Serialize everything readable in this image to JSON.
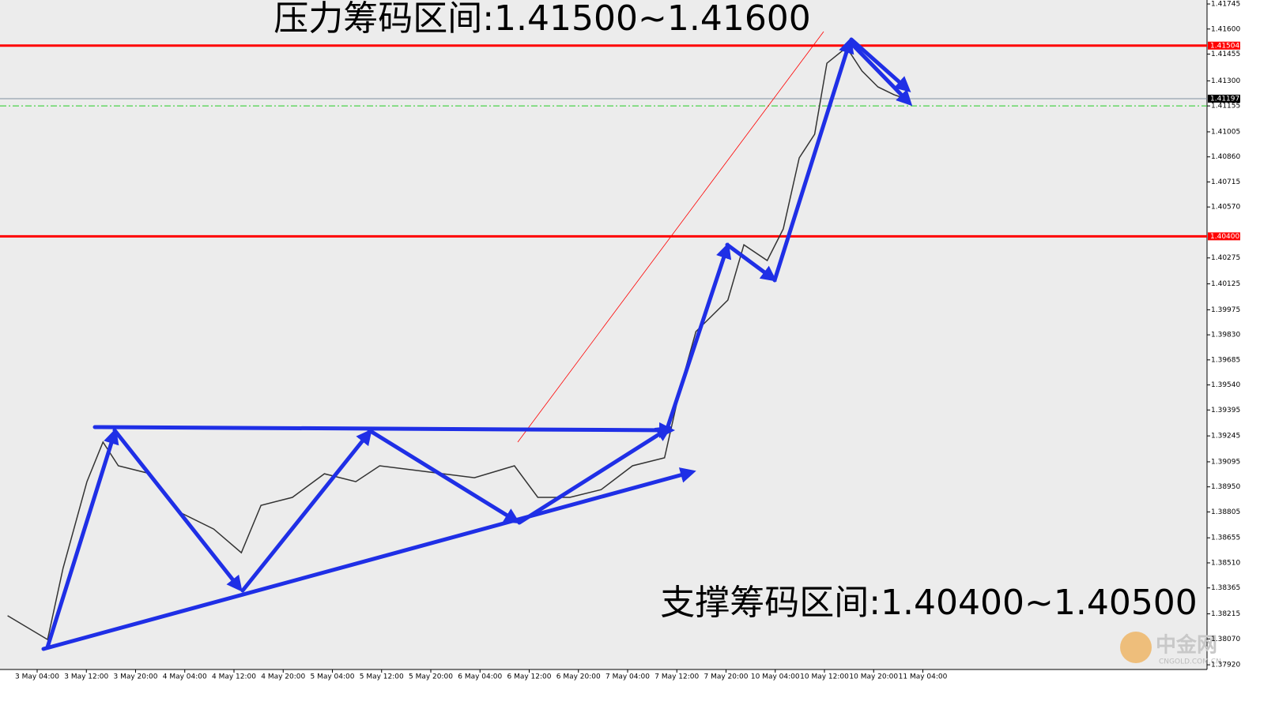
{
  "chart_data": {
    "type": "line",
    "annotations": [
      "压力筹码区间:1.41500~1.41600",
      "支撑筹码区间:1.40400~1.40500"
    ],
    "watermark": [
      "中金网",
      "CNGOLD.COM.CN"
    ],
    "color": "#333333",
    "x": [
      -4.8,
      1.7,
      4.2,
      8.1,
      10.7,
      13.2,
      18.4,
      23.5,
      28.7,
      33.2,
      36.4,
      41.5,
      46.7,
      51.8,
      55.7,
      60.8,
      66.0,
      71.1,
      77.6,
      81.4,
      86.6,
      91.7,
      96.8,
      102.0,
      104.6,
      107.1,
      112.3,
      114.9,
      118.7,
      121.3,
      123.9,
      126.4,
      128.4,
      131.6,
      134.1,
      136.7,
      139.3,
      141.2
    ],
    "values": [
      1.38204,
      1.38066,
      1.38478,
      1.3898,
      1.39209,
      1.39072,
      1.39026,
      1.38797,
      1.38706,
      1.38569,
      1.38843,
      1.38889,
      1.39026,
      1.3898,
      1.39072,
      1.39049,
      1.39026,
      1.39003,
      1.39072,
      1.38889,
      1.38889,
      1.38934,
      1.39072,
      1.39118,
      1.39529,
      1.39849,
      1.40031,
      1.40351,
      1.4026,
      1.40443,
      1.40854,
      1.40991,
      1.41402,
      1.41494,
      1.41357,
      1.41265,
      1.4122,
      1.41197
    ],
    "xlim": [
      -6.04,
      190.2
    ],
    "ylim": [
      1.37893,
      1.41768
    ],
    "xticks": [
      {
        "value": 0,
        "label": "3 May 04:00"
      },
      {
        "value": 8,
        "label": "3 May 12:00"
      },
      {
        "value": 16,
        "label": "3 May 20:00"
      },
      {
        "value": 24,
        "label": "4 May 04:00"
      },
      {
        "value": 32,
        "label": "4 May 12:00"
      },
      {
        "value": 40,
        "label": "4 May 20:00"
      },
      {
        "value": 48,
        "label": "5 May 04:00"
      },
      {
        "value": 56,
        "label": "5 May 12:00"
      },
      {
        "value": 64,
        "label": "5 May 20:00"
      },
      {
        "value": 72,
        "label": "6 May 04:00"
      },
      {
        "value": 80,
        "label": "6 May 12:00"
      },
      {
        "value": 88,
        "label": "6 May 20:00"
      },
      {
        "value": 96,
        "label": "7 May 04:00"
      },
      {
        "value": 104,
        "label": "7 May 12:00"
      },
      {
        "value": 112,
        "label": "7 May 20:00"
      },
      {
        "value": 120,
        "label": "10 May 04:00"
      },
      {
        "value": 128,
        "label": "10 May 12:00"
      },
      {
        "value": 136,
        "label": "10 May 20:00"
      },
      {
        "value": 144,
        "label": "11 May 04:00"
      }
    ],
    "yticks": [
      {
        "value": 1.41745,
        "label": "1.41745"
      },
      {
        "value": 1.416,
        "label": "1.41600"
      },
      {
        "value": 1.41455,
        "label": "1.41455"
      },
      {
        "value": 1.413,
        "label": "1.41300"
      },
      {
        "value": 1.41155,
        "label": "1.41155"
      },
      {
        "value": 1.41005,
        "label": "1.41005"
      },
      {
        "value": 1.4086,
        "label": "1.40860"
      },
      {
        "value": 1.40715,
        "label": "1.40715"
      },
      {
        "value": 1.4057,
        "label": "1.40570"
      },
      {
        "value": 1.40275,
        "label": "1.40275"
      },
      {
        "value": 1.40125,
        "label": "1.40125"
      },
      {
        "value": 1.39975,
        "label": "1.39975"
      },
      {
        "value": 1.3983,
        "label": "1.39830"
      },
      {
        "value": 1.39685,
        "label": "1.39685"
      },
      {
        "value": 1.3954,
        "label": "1.39540"
      },
      {
        "value": 1.39395,
        "label": "1.39395"
      },
      {
        "value": 1.39245,
        "label": "1.39245"
      },
      {
        "value": 1.39095,
        "label": "1.39095"
      },
      {
        "value": 1.3895,
        "label": "1.38950"
      },
      {
        "value": 1.38805,
        "label": "1.38805"
      },
      {
        "value": 1.38655,
        "label": "1.38655"
      },
      {
        "value": 1.3851,
        "label": "1.38510"
      },
      {
        "value": 1.38365,
        "label": "1.38365"
      },
      {
        "value": 1.38215,
        "label": "1.38215"
      },
      {
        "value": 1.3807,
        "label": "1.38070"
      },
      {
        "value": 1.3792,
        "label": "1.37920"
      }
    ],
    "levels": [
      {
        "value": 1.41504,
        "label": "1.41504",
        "color": "#ff0000"
      },
      {
        "value": 1.404,
        "label": "1.40400",
        "color": "#ff0000"
      },
      {
        "value": 1.41197,
        "label": "1.41197",
        "color": "#7f8fa0"
      },
      {
        "value": 1.41155,
        "color": "#22cc22"
      }
    ]
  }
}
